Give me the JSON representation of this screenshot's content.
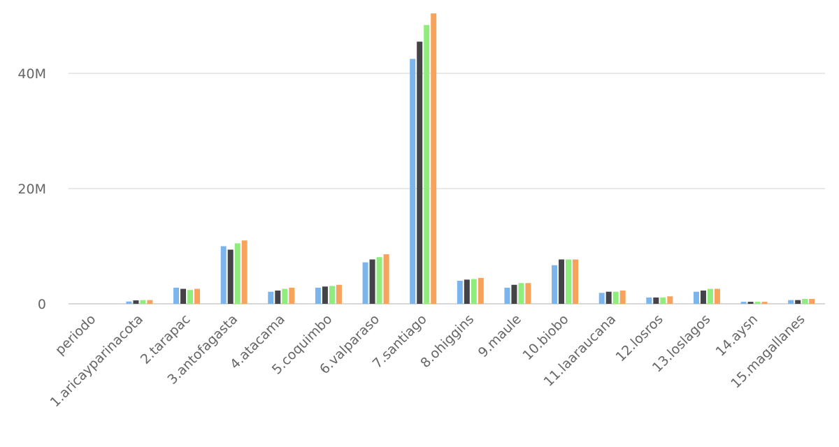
{
  "chart_data": {
    "type": "bar",
    "title": "",
    "xlabel": "",
    "ylabel": "",
    "ylim": [
      0,
      50400000
    ],
    "yticks": [
      {
        "value": 0,
        "label": "0"
      },
      {
        "value": 20000000,
        "label": "20M"
      },
      {
        "value": 40000000,
        "label": "40M"
      }
    ],
    "grid": true,
    "legend": "none",
    "categories": [
      "periodo",
      "1.aricayparinacota",
      "2.tarapac",
      "3.antofagasta",
      "4.atacama",
      "5.coquimbo",
      "6.valparaso",
      "7.santiago",
      "8.ohiggins",
      "9.maule",
      "10.biobo",
      "11.laaraucana",
      "12.losros",
      "13.loslagos",
      "14.aysn",
      "15.magallanes"
    ],
    "series": [
      {
        "color": "#7cb5ec",
        "values": [
          0,
          400000,
          2800000,
          10000000,
          2100000,
          2800000,
          7200000,
          42500000,
          4000000,
          2800000,
          6700000,
          1900000,
          1100000,
          2100000,
          350000,
          650000
        ]
      },
      {
        "color": "#434348",
        "values": [
          0,
          600000,
          2600000,
          9400000,
          2300000,
          3000000,
          7700000,
          45500000,
          4200000,
          3300000,
          7700000,
          2100000,
          1100000,
          2300000,
          350000,
          650000
        ]
      },
      {
        "color": "#90ed7d",
        "values": [
          0,
          650000,
          2400000,
          10500000,
          2600000,
          3100000,
          8100000,
          48400000,
          4300000,
          3600000,
          7700000,
          2100000,
          1100000,
          2600000,
          350000,
          850000
        ]
      },
      {
        "color": "#f7a35c",
        "values": [
          0,
          650000,
          2600000,
          11000000,
          2800000,
          3300000,
          8600000,
          50400000,
          4500000,
          3600000,
          7700000,
          2300000,
          1300000,
          2600000,
          350000,
          850000
        ]
      }
    ]
  }
}
